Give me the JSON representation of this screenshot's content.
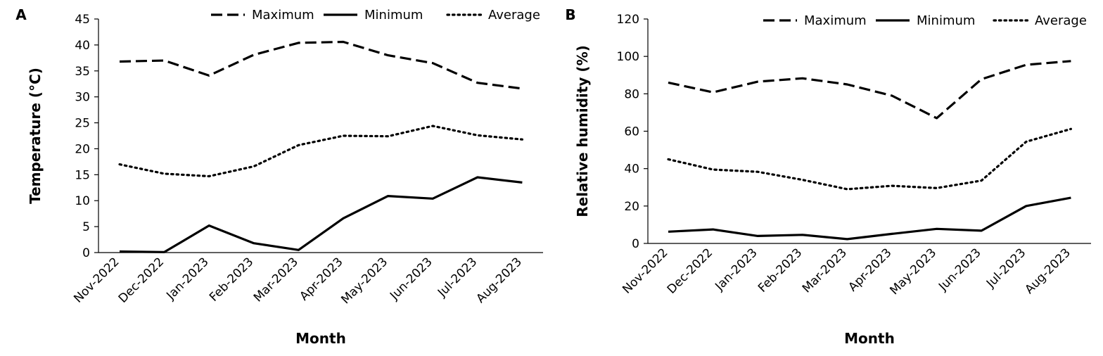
{
  "chart_data": [
    {
      "type": "line",
      "panel_label": "A",
      "xlabel": "Month",
      "ylabel": "Temperature (°C)",
      "ylim": [
        0,
        45
      ],
      "yticks": [
        0,
        5,
        10,
        15,
        20,
        25,
        30,
        35,
        40,
        45
      ],
      "grid": false,
      "legend_position": "top",
      "categories": [
        "Nov-2022",
        "Dec-2022",
        "Jan-2023",
        "Feb-2023",
        "Mar-2023",
        "Apr-2023",
        "May-2023",
        "Jun-2023",
        "Jul-2023",
        "Aug-2023"
      ],
      "series": [
        {
          "name": "Maximum",
          "style": "dashed",
          "values": [
            36.8,
            37.0,
            34.1,
            38.1,
            40.4,
            40.6,
            38.0,
            36.5,
            32.7,
            31.6
          ]
        },
        {
          "name": "Minimum",
          "style": "solid",
          "values": [
            0.2,
            0.1,
            5.2,
            1.8,
            0.5,
            6.6,
            10.9,
            10.4,
            14.5,
            13.5
          ]
        },
        {
          "name": "Average",
          "style": "dotted",
          "values": [
            17.0,
            15.2,
            14.7,
            16.6,
            20.7,
            22.5,
            22.4,
            24.4,
            22.6,
            21.8
          ]
        }
      ]
    },
    {
      "type": "line",
      "panel_label": "B",
      "xlabel": "Month",
      "ylabel": "Relative humidity (%)",
      "ylim": [
        0,
        120
      ],
      "yticks": [
        0,
        20,
        40,
        60,
        80,
        100,
        120
      ],
      "grid": false,
      "legend_position": "top",
      "categories": [
        "Nov-2022",
        "Dec-2022",
        "Jan-2023",
        "Feb-2023",
        "Mar-2023",
        "Apr-2023",
        "May-2023",
        "Jun-2023",
        "Jul-2023",
        "Aug-2023"
      ],
      "series": [
        {
          "name": "Maximum",
          "style": "dashed",
          "values": [
            86.0,
            80.8,
            86.5,
            88.3,
            85.0,
            79.0,
            67.0,
            87.8,
            95.5,
            97.5
          ]
        },
        {
          "name": "Minimum",
          "style": "solid",
          "values": [
            6.3,
            7.5,
            4.0,
            4.6,
            2.3,
            5.1,
            7.8,
            6.8,
            20.0,
            24.4
          ]
        },
        {
          "name": "Average",
          "style": "dotted",
          "values": [
            45.0,
            39.5,
            38.3,
            34.0,
            29.0,
            30.8,
            29.6,
            33.6,
            54.4,
            61.2
          ]
        }
      ]
    }
  ]
}
